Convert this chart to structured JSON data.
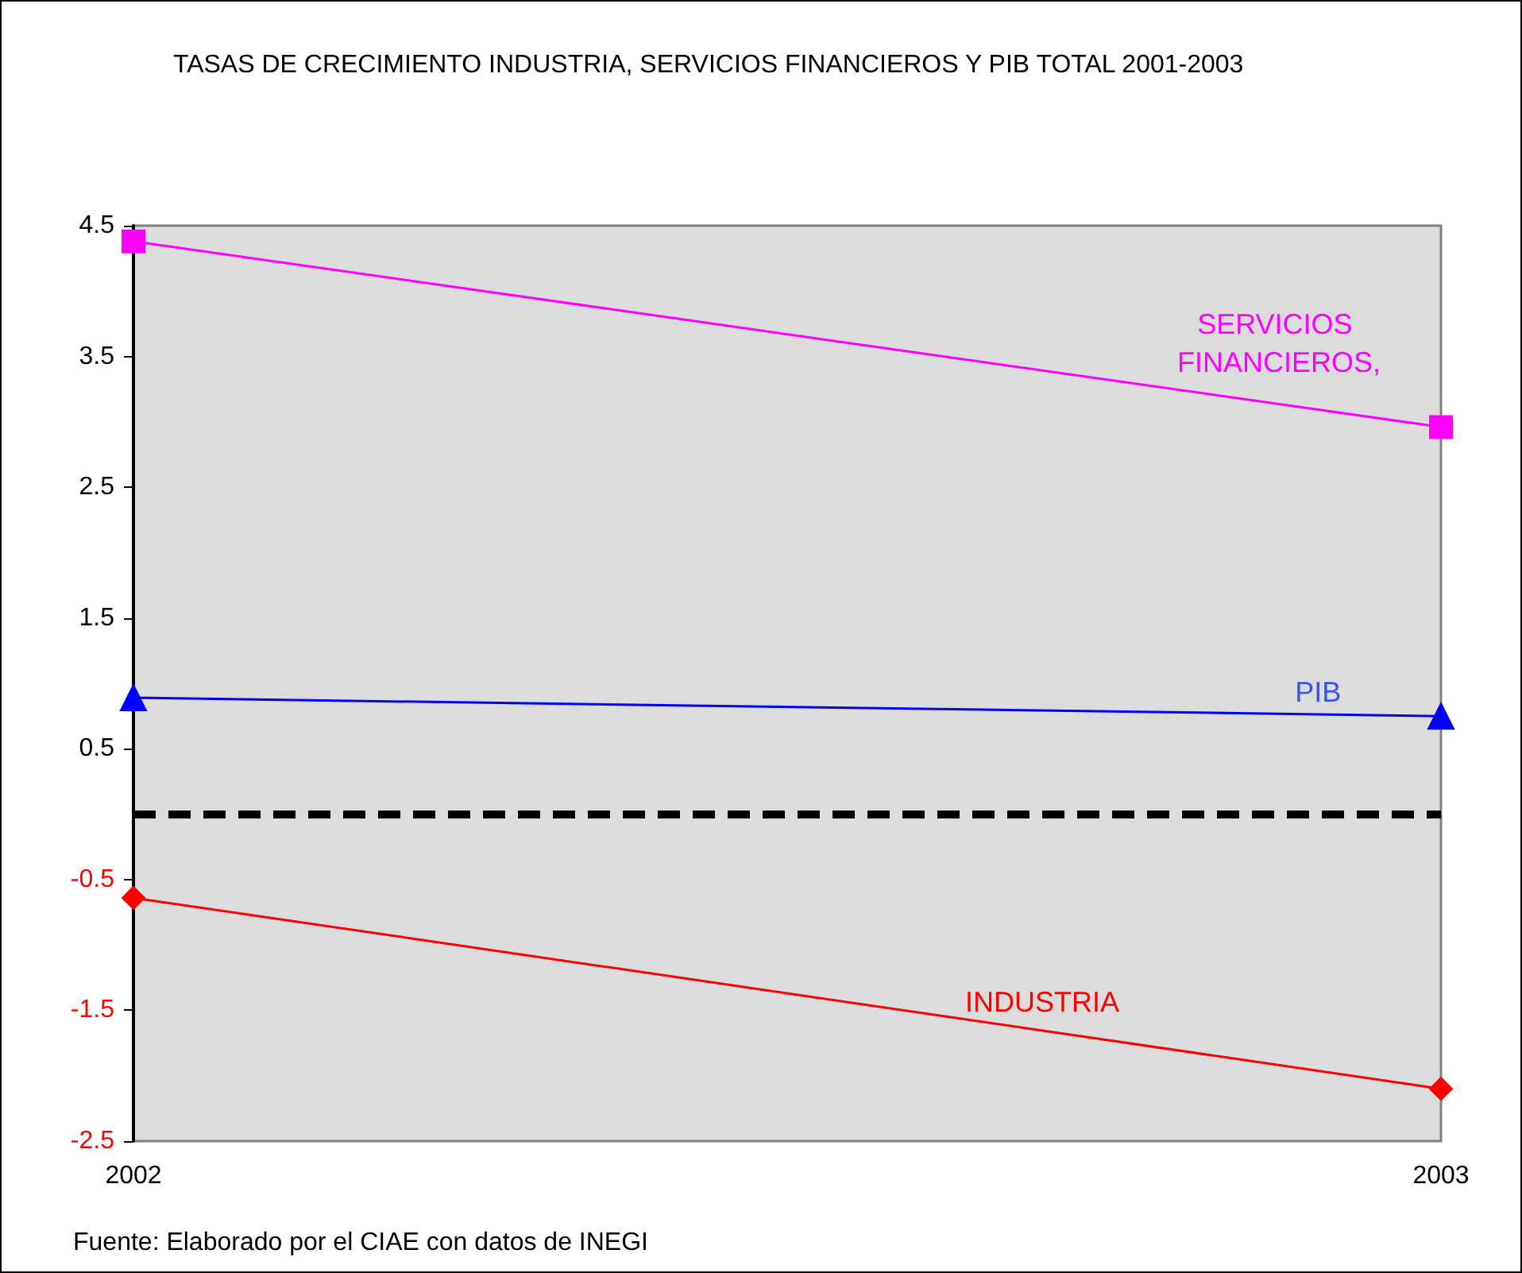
{
  "chart_data": {
    "type": "line",
    "title": "TASAS DE CRECIMIENTO INDUSTRIA, SERVICIOS FINANCIEROS Y PIB TOTAL 2001-2003",
    "categories": [
      "2002",
      "2003"
    ],
    "series": [
      {
        "name": "SERVICIOS FINANCIEROS,",
        "color": "#ff00ff",
        "marker": "square",
        "values": [
          4.38,
          2.96
        ]
      },
      {
        "name": "PIB",
        "color": "#0000ff",
        "marker": "triangle",
        "values": [
          0.89,
          0.75
        ]
      },
      {
        "name": "INDUSTRIA",
        "color": "#ff0000",
        "marker": "diamond",
        "values": [
          -0.64,
          -2.1
        ]
      }
    ],
    "ylim": [
      -2.5,
      4.5
    ],
    "yticks": [
      -2.5,
      -1.5,
      -0.5,
      0.5,
      1.5,
      2.5,
      3.5,
      4.5
    ],
    "ref_lines": [
      {
        "axis": "y",
        "value": 0,
        "color": "#000000",
        "line_style": "dashed"
      }
    ],
    "grid": false,
    "legend": false,
    "annotations": [
      "Fuente: Elaborado por el CIAE con datos de INEGI"
    ]
  }
}
